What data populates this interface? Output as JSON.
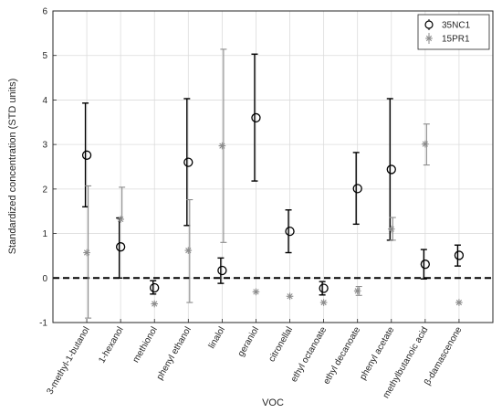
{
  "chart_data": {
    "type": "scatter",
    "title": "",
    "xlabel": "VOC",
    "ylabel": "Standardized concentration (STD units)",
    "categories": [
      "3-methyl-1-butanol",
      "1-hexanol",
      "methionol",
      "phenyl ethanol",
      "linalol",
      "geraniol",
      "citronellal",
      "ethyl octanoate",
      "ethyl decanoate",
      "phenyl acetate",
      "methylbutanoic acid",
      "β-damascenone"
    ],
    "ylim": [
      -1,
      6
    ],
    "yticks": [
      -1,
      0,
      1,
      2,
      3,
      4,
      5,
      6
    ],
    "grid": "on",
    "legend_position": "top-right",
    "reference_line": {
      "y": 0,
      "style": "dashed"
    },
    "series": [
      {
        "name": "35NC1",
        "marker": "circle",
        "color": "#000000",
        "values": [
          2.76,
          0.7,
          -0.22,
          2.6,
          0.17,
          3.6,
          1.05,
          -0.23,
          2.01,
          2.44,
          0.31,
          0.51
        ],
        "err_low": [
          1.6,
          0.0,
          -0.36,
          1.18,
          -0.12,
          2.18,
          0.57,
          -0.38,
          1.21,
          0.85,
          -0.02,
          0.27
        ],
        "err_high": [
          3.93,
          1.35,
          -0.06,
          4.03,
          0.45,
          5.03,
          1.53,
          -0.08,
          2.82,
          4.03,
          0.64,
          0.74
        ]
      },
      {
        "name": "15PR1",
        "marker": "asterisk",
        "color": "#8c8c8c",
        "values": [
          0.57,
          1.32,
          -0.58,
          0.62,
          2.97,
          -0.31,
          -0.41,
          -0.55,
          -0.29,
          1.1,
          3.01,
          -0.55
        ],
        "err_low": [
          -0.9,
          null,
          null,
          -0.55,
          0.8,
          null,
          null,
          null,
          -0.39,
          0.85,
          2.54,
          null
        ],
        "err_high": [
          2.07,
          2.04,
          null,
          1.76,
          5.14,
          null,
          null,
          null,
          -0.19,
          1.36,
          3.46,
          null
        ]
      }
    ]
  }
}
